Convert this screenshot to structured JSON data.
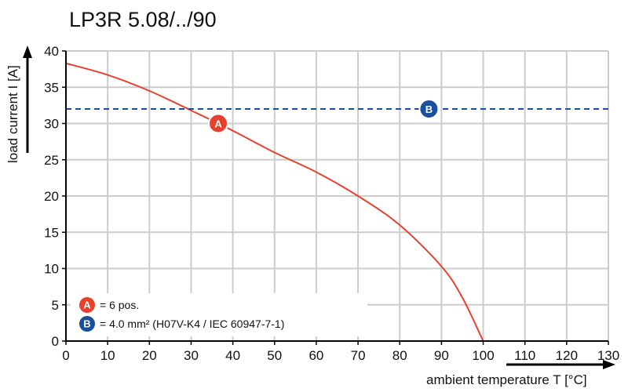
{
  "chart_data": {
    "type": "line",
    "title": "LP3R 5.08/../90",
    "xlabel": "ambient temperature T [°C]",
    "ylabel": "load current I [A]",
    "xlim": [
      0,
      130
    ],
    "ylim": [
      0,
      40
    ],
    "xticks": [
      0,
      10,
      20,
      30,
      40,
      50,
      60,
      70,
      80,
      90,
      100,
      110,
      120,
      130
    ],
    "yticks": [
      0,
      5,
      10,
      15,
      20,
      25,
      30,
      35,
      40
    ],
    "grid": true,
    "legend_position": "bottom-left",
    "series": [
      {
        "marker": "A",
        "color": "#e8402d",
        "style": "solid",
        "x": [
          0,
          10,
          20,
          30,
          40,
          50,
          60,
          70,
          80,
          90,
          95,
          100
        ],
        "y": [
          38.3,
          36.7,
          34.5,
          31.8,
          29.0,
          26.0,
          23.3,
          20.0,
          16.0,
          10.3,
          6.0,
          0
        ]
      },
      {
        "marker": "B",
        "color": "#1a4f9c",
        "style": "dashed",
        "x": [
          0,
          130
        ],
        "y": [
          32,
          32
        ]
      }
    ],
    "markers": [
      {
        "label": "A",
        "x": 36.5,
        "y": 30,
        "color": "#e8402d"
      },
      {
        "label": "B",
        "x": 87,
        "y": 32,
        "color": "#1a4f9c"
      }
    ],
    "legend": [
      {
        "marker": "A",
        "text": "= 6 pos.",
        "color": "#e8402d"
      },
      {
        "marker": "B",
        "text": "= 4.0 mm² (H07V-K4 / IEC 60947-7-1)",
        "color": "#1a4f9c"
      }
    ]
  }
}
